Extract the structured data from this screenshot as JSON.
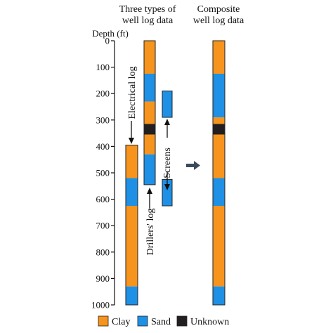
{
  "headings": {
    "left_line1": "Three types of",
    "left_line2": "well log data",
    "right_line1": "Composite",
    "right_line2": "well log data"
  },
  "axis": {
    "title": "Depth (ft)",
    "min": 0,
    "max": 1000,
    "ticks": [
      0,
      100,
      200,
      300,
      400,
      500,
      600,
      700,
      800,
      900,
      1000
    ]
  },
  "labels": {
    "electrical": "Electrical log",
    "drillers": "Drillers' log",
    "screens": "Screens"
  },
  "colors": {
    "clay": "#F7941D",
    "sand": "#1E90E6",
    "unknown": "#231F20",
    "arrow": "#3A4A5C",
    "outline": "#222222"
  },
  "legend": [
    {
      "key": "clay",
      "label": "Clay"
    },
    {
      "key": "sand",
      "label": "Sand"
    },
    {
      "key": "unknown",
      "label": "Unknown"
    }
  ],
  "logs": {
    "electrical": [
      {
        "from": 395,
        "to": 520,
        "type": "clay"
      },
      {
        "from": 520,
        "to": 625,
        "type": "sand"
      },
      {
        "from": 625,
        "to": 930,
        "type": "clay"
      },
      {
        "from": 930,
        "to": 1000,
        "type": "sand"
      }
    ],
    "drillers": [
      {
        "from": 0,
        "to": 125,
        "type": "clay"
      },
      {
        "from": 125,
        "to": 230,
        "type": "sand"
      },
      {
        "from": 230,
        "to": 315,
        "type": "clay"
      },
      {
        "from": 315,
        "to": 355,
        "type": "unknown"
      },
      {
        "from": 355,
        "to": 430,
        "type": "clay"
      },
      {
        "from": 430,
        "to": 545,
        "type": "sand"
      }
    ],
    "screens": [
      {
        "from": 190,
        "to": 290,
        "type": "sand"
      },
      {
        "from": 525,
        "to": 625,
        "type": "sand"
      }
    ],
    "composite": [
      {
        "from": 0,
        "to": 125,
        "type": "clay"
      },
      {
        "from": 125,
        "to": 290,
        "type": "sand"
      },
      {
        "from": 290,
        "to": 315,
        "type": "clay"
      },
      {
        "from": 315,
        "to": 355,
        "type": "unknown"
      },
      {
        "from": 355,
        "to": 520,
        "type": "clay"
      },
      {
        "from": 520,
        "to": 625,
        "type": "sand"
      },
      {
        "from": 625,
        "to": 930,
        "type": "clay"
      },
      {
        "from": 930,
        "to": 1000,
        "type": "sand"
      }
    ]
  }
}
